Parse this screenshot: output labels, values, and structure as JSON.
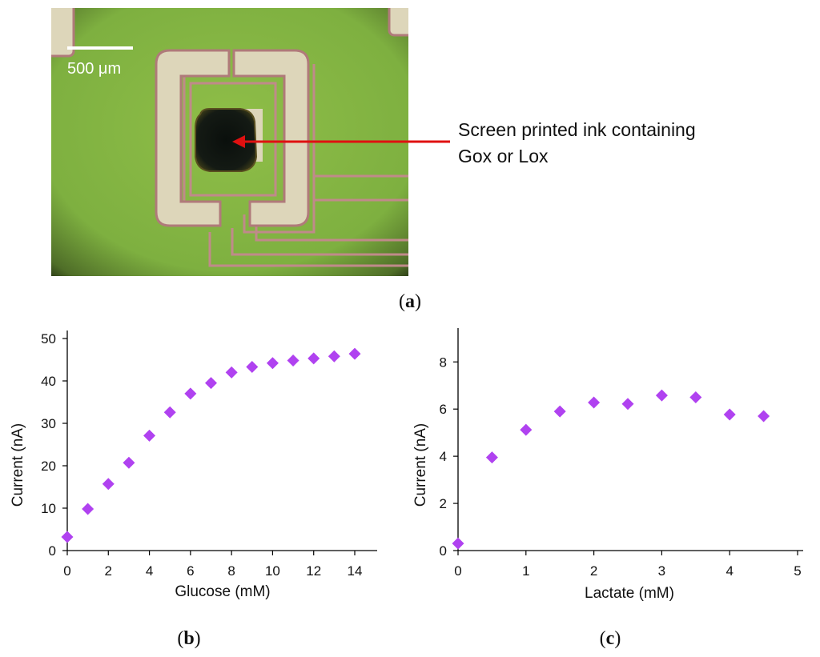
{
  "micrograph": {
    "scale_bar_label": "500 μm",
    "annotation_line1": "Screen printed ink containing",
    "annotation_line2": "Gox or Lox"
  },
  "panel_labels": {
    "a": "a",
    "b": "b",
    "c": "c"
  },
  "colors": {
    "marker": "#b042f0",
    "arrow": "#e01010"
  },
  "chart_data": [
    {
      "type": "scatter",
      "panel": "b",
      "xlabel": "Glucose (mM)",
      "ylabel": "Current (nA)",
      "xlim": [
        0,
        14
      ],
      "ylim": [
        0,
        50
      ],
      "xticks": [
        0,
        2,
        4,
        6,
        8,
        10,
        12,
        14
      ],
      "yticks": [
        0,
        10,
        20,
        30,
        40,
        50
      ],
      "marker": "diamond",
      "grid": false,
      "points": [
        {
          "x": 0,
          "y": 3.2
        },
        {
          "x": 1,
          "y": 9.8
        },
        {
          "x": 2,
          "y": 15.7
        },
        {
          "x": 3,
          "y": 20.7
        },
        {
          "x": 4,
          "y": 27.1
        },
        {
          "x": 5,
          "y": 32.6
        },
        {
          "x": 6,
          "y": 37.0
        },
        {
          "x": 7,
          "y": 39.5
        },
        {
          "x": 8,
          "y": 42.0
        },
        {
          "x": 9,
          "y": 43.3
        },
        {
          "x": 10,
          "y": 44.2
        },
        {
          "x": 11,
          "y": 44.8
        },
        {
          "x": 12,
          "y": 45.3
        },
        {
          "x": 13,
          "y": 45.8
        },
        {
          "x": 14,
          "y": 46.4
        }
      ]
    },
    {
      "type": "scatter",
      "panel": "c",
      "xlabel": "Lactate (mM)",
      "ylabel": "Current (nA)",
      "xlim": [
        0,
        5
      ],
      "ylim": [
        0,
        9.4
      ],
      "xticks": [
        0,
        1,
        2,
        3,
        4,
        5
      ],
      "yticks": [
        0,
        2,
        4,
        6,
        8
      ],
      "marker": "diamond",
      "grid": false,
      "points": [
        {
          "x": 0,
          "y": 0.3
        },
        {
          "x": 0.5,
          "y": 3.95
        },
        {
          "x": 1,
          "y": 5.12
        },
        {
          "x": 1.5,
          "y": 5.9
        },
        {
          "x": 2,
          "y": 6.28
        },
        {
          "x": 2.5,
          "y": 6.22
        },
        {
          "x": 3,
          "y": 6.58
        },
        {
          "x": 3.5,
          "y": 6.5
        },
        {
          "x": 4,
          "y": 5.77
        },
        {
          "x": 4.5,
          "y": 5.7
        }
      ]
    }
  ]
}
